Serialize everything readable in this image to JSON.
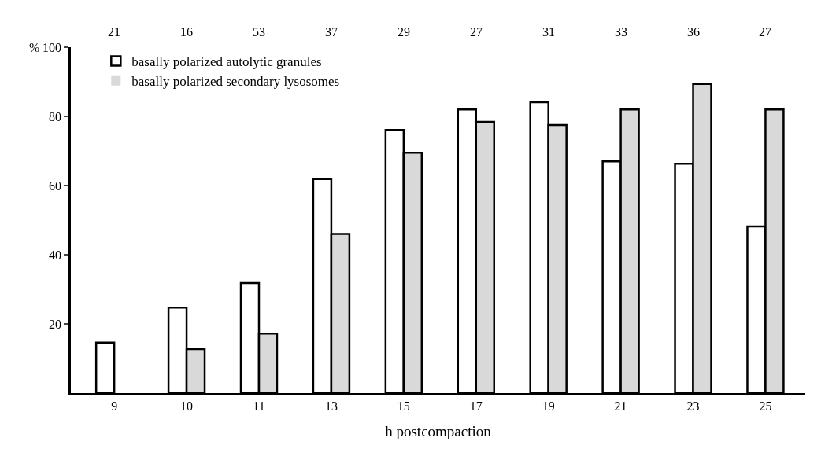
{
  "chart_data": {
    "type": "bar",
    "xlabel": "h postcompaction",
    "ylabel": "%",
    "categories": [
      "9",
      "10",
      "11",
      "13",
      "15",
      "17",
      "19",
      "21",
      "23",
      "25"
    ],
    "series": [
      {
        "name": "basally polarized autolytic granules",
        "color": "#ffffff",
        "values": [
          14.6,
          24.7,
          31.8,
          61.9,
          76.1,
          82,
          84.1,
          67,
          66.3,
          48.2
        ]
      },
      {
        "name": "basally polarized secondary lysosomes",
        "color": "#d9d9d9",
        "values": [
          0,
          12.7,
          17.2,
          46,
          69.5,
          78.4,
          77.5,
          82,
          89.4,
          82
        ]
      }
    ],
    "annotations": [
      "21",
      "16",
      "53",
      "37",
      "29",
      "27",
      "31",
      "33",
      "36",
      "27"
    ],
    "ylim": [
      0,
      100
    ],
    "yticks": [
      20,
      40,
      60,
      80,
      100
    ],
    "legend": "top left"
  }
}
